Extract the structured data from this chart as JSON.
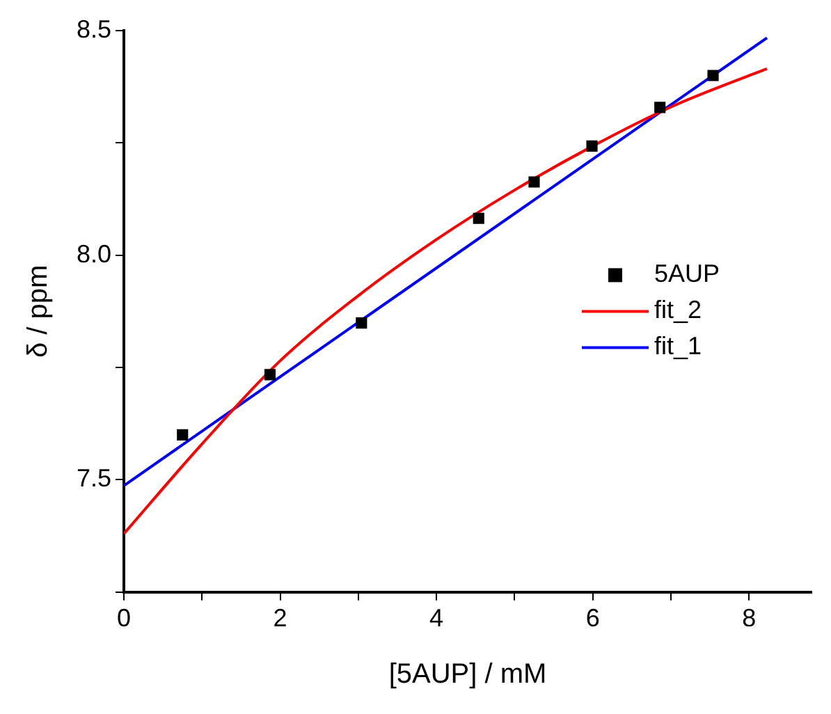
{
  "chart_data": {
    "type": "scatter",
    "xlabel": "[5AUP] / mM",
    "ylabel": "δ / ppm",
    "xlim": [
      0,
      8.8
    ],
    "ylim": [
      7.25,
      8.5
    ],
    "xticks": [
      0,
      {
        "value": 1,
        "label": null
      },
      2,
      {
        "value": 3,
        "label": null
      },
      4,
      {
        "value": 5,
        "label": null
      },
      6,
      {
        "value": 7,
        "label": null
      },
      8
    ],
    "yticks": [
      {
        "value": 7.25,
        "label": null
      },
      7.5,
      {
        "value": 7.75,
        "label": null
      },
      {
        "value": 8,
        "label": "8.0"
      },
      {
        "value": 8.25,
        "label": null
      },
      8.5
    ],
    "grid": false,
    "legend": "right",
    "series": [
      {
        "name": "5AUP",
        "type": "scatter",
        "color": "#000000",
        "marker": "square",
        "x": [
          0.75,
          1.87,
          3.04,
          4.54,
          5.25,
          5.99,
          6.86,
          7.54
        ],
        "values": [
          7.6,
          7.734,
          7.849,
          8.082,
          8.163,
          8.243,
          8.329,
          8.4
        ]
      },
      {
        "name": "fit_2",
        "type": "line",
        "color": "#ff0000",
        "marker": "none",
        "x": [
          0,
          1,
          2,
          3,
          4,
          5,
          6,
          7,
          8,
          8.23
        ],
        "values": [
          7.38,
          7.58,
          7.765,
          7.91,
          8.035,
          8.145,
          8.243,
          8.33,
          8.4,
          8.415
        ]
      },
      {
        "name": "fit_1",
        "type": "line",
        "color": "#0000ff",
        "marker": "none",
        "x": [
          0,
          8.23
        ],
        "values": [
          7.487,
          8.484
        ]
      }
    ]
  }
}
